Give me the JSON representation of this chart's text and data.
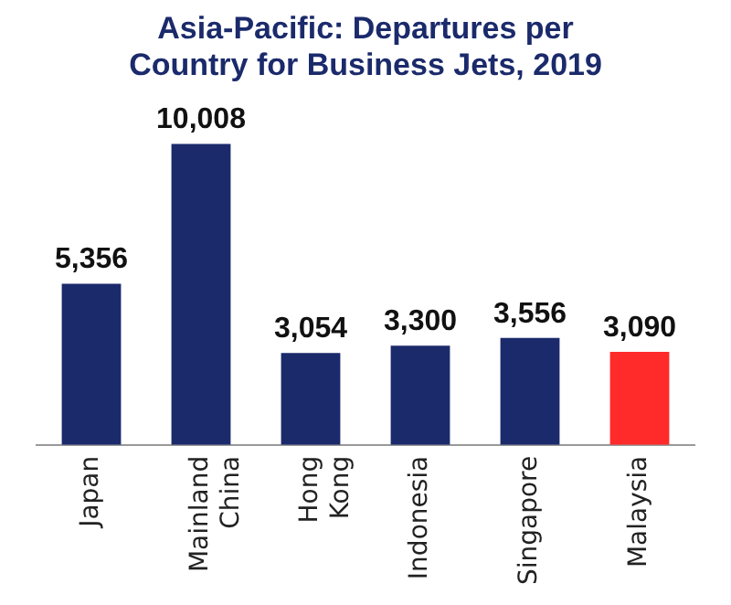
{
  "chart_data": {
    "type": "bar",
    "title": "Asia-Pacific: Departures per Country for Business Jets, 2019",
    "categories": [
      "Japan",
      "Mainland China",
      "Hong Kong",
      "Indonesia",
      "Singapore",
      "Malaysia"
    ],
    "values": [
      5356,
      10008,
      3054,
      3300,
      3556,
      3090
    ],
    "colors": [
      "#1b2a6b",
      "#1b2a6b",
      "#1b2a6b",
      "#1b2a6b",
      "#1b2a6b",
      "#ff2a2a"
    ],
    "value_labels": [
      "5,356",
      "10,008",
      "3,054",
      "3,300",
      "3,556",
      "3,090"
    ],
    "grid": false,
    "legend": false
  }
}
